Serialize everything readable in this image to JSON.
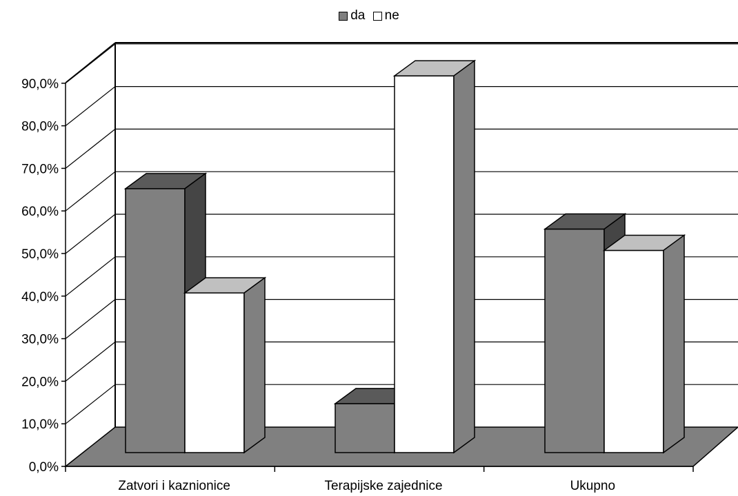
{
  "chart_data": {
    "type": "bar",
    "style": "3d-clustered-column",
    "categories": [
      "Zatvori i kaznionice",
      "Terapijske zajednice",
      "Ukupno"
    ],
    "series": [
      {
        "name": "da",
        "values": [
          62.0,
          11.5,
          52.5
        ],
        "color": "#808080"
      },
      {
        "name": "ne",
        "values": [
          37.5,
          88.5,
          47.5
        ],
        "color": "#ffffff"
      }
    ],
    "yticks": [
      "0,0%",
      "10,0%",
      "20,0%",
      "30,0%",
      "40,0%",
      "50,0%",
      "60,0%",
      "70,0%",
      "80,0%",
      "90,0%"
    ],
    "ylim": [
      0,
      90
    ],
    "legend_position": "top-center",
    "grid": true,
    "floor_color": "#808080"
  }
}
